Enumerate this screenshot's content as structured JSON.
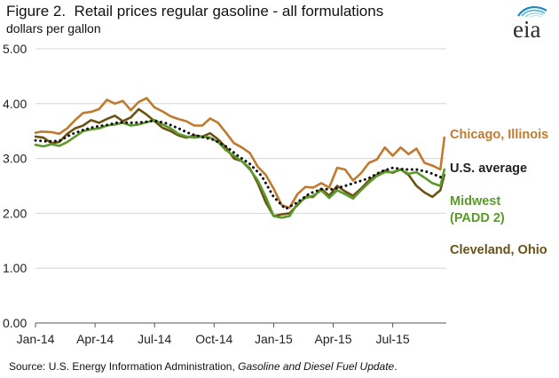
{
  "header": {
    "title_prefix": "Figure 2.",
    "title_text": "Retail prices regular gasoline - all formulations",
    "units": "dollars per gallon"
  },
  "logo": {
    "text": "eia",
    "icon": "eia-logo"
  },
  "source": {
    "prefix": "Source:  U.S. Energy Information Administration, ",
    "publication": "Gasoline and Diesel Fuel Update",
    "suffix": "."
  },
  "chart_data": {
    "type": "line",
    "ylim": [
      0,
      5
    ],
    "y_ticks": [
      0,
      1,
      2,
      3,
      4,
      5
    ],
    "y_tick_labels": [
      "0.00",
      "1.00",
      "2.00",
      "3.00",
      "4.00",
      "5.00"
    ],
    "x_ticks": [
      0,
      3,
      6,
      9,
      12,
      15,
      18
    ],
    "x_tick_labels": [
      "Jan-14",
      "Apr-14",
      "Jul-14",
      "Oct-14",
      "Jan-15",
      "Apr-15",
      "Jul-15"
    ],
    "x_unit": "months since Jan-14",
    "xlim": [
      0,
      20.7
    ],
    "grid": true,
    "series": [
      {
        "name": "Chicago, Illinois",
        "label_lines": [
          "Chicago, Illinois"
        ],
        "color": "#c07a2e",
        "dash": "solid",
        "x": [
          0.0,
          0.3,
          0.8,
          1.2,
          1.6,
          2.0,
          2.4,
          2.8,
          3.2,
          3.6,
          4.0,
          4.4,
          4.8,
          5.2,
          5.6,
          6.0,
          6.4,
          6.8,
          7.2,
          7.6,
          8.0,
          8.4,
          8.8,
          9.2,
          9.6,
          10.0,
          10.4,
          10.8,
          11.2,
          11.6,
          12.0,
          12.4,
          12.8,
          13.2,
          13.6,
          14.0,
          14.4,
          14.8,
          15.2,
          15.6,
          16.0,
          16.4,
          16.8,
          17.2,
          17.6,
          18.0,
          18.4,
          18.8,
          19.2,
          19.6,
          20.0,
          20.4,
          20.6
        ],
        "y": [
          3.47,
          3.49,
          3.48,
          3.45,
          3.55,
          3.7,
          3.83,
          3.85,
          3.9,
          4.07,
          4.0,
          4.05,
          3.88,
          4.03,
          4.1,
          3.93,
          3.86,
          3.77,
          3.72,
          3.68,
          3.6,
          3.6,
          3.73,
          3.65,
          3.47,
          3.28,
          3.2,
          3.1,
          2.85,
          2.7,
          2.45,
          2.15,
          2.1,
          2.35,
          2.48,
          2.47,
          2.55,
          2.47,
          2.83,
          2.8,
          2.6,
          2.73,
          2.92,
          2.98,
          3.2,
          3.05,
          3.2,
          3.08,
          3.18,
          2.92,
          2.87,
          2.8,
          3.38
        ]
      },
      {
        "name": "U.S. average",
        "label_lines": [
          "U.S. average"
        ],
        "color": "#111111",
        "dash": "dotted",
        "x": [
          0.0,
          0.6,
          1.2,
          1.8,
          2.4,
          3.0,
          3.6,
          4.2,
          4.8,
          5.4,
          6.0,
          6.6,
          7.2,
          7.8,
          8.4,
          9.0,
          9.6,
          10.2,
          10.8,
          11.4,
          12.0,
          12.6,
          13.2,
          13.8,
          14.4,
          15.0,
          15.6,
          16.2,
          16.8,
          17.4,
          18.0,
          18.6,
          19.2,
          19.8,
          20.4,
          20.6
        ],
        "y": [
          3.33,
          3.31,
          3.32,
          3.44,
          3.52,
          3.58,
          3.61,
          3.66,
          3.65,
          3.66,
          3.69,
          3.64,
          3.55,
          3.45,
          3.39,
          3.34,
          3.22,
          3.05,
          2.9,
          2.68,
          2.3,
          2.08,
          2.2,
          2.36,
          2.44,
          2.44,
          2.5,
          2.57,
          2.64,
          2.76,
          2.83,
          2.8,
          2.8,
          2.75,
          2.66,
          2.67
        ]
      },
      {
        "name": "Midwest (PADD 2)",
        "label_lines": [
          "Midwest",
          "(PADD 2)"
        ],
        "color": "#5a9a2a",
        "dash": "solid",
        "x": [
          0.0,
          0.4,
          0.8,
          1.2,
          1.6,
          2.0,
          2.4,
          2.8,
          3.2,
          3.6,
          4.0,
          4.4,
          4.8,
          5.2,
          5.6,
          6.0,
          6.4,
          6.8,
          7.2,
          7.6,
          8.0,
          8.4,
          8.8,
          9.2,
          9.6,
          10.0,
          10.4,
          10.8,
          11.2,
          11.6,
          12.0,
          12.4,
          12.8,
          13.2,
          13.6,
          14.0,
          14.4,
          14.8,
          15.2,
          15.6,
          16.0,
          16.4,
          16.8,
          17.2,
          17.6,
          18.0,
          18.4,
          18.8,
          19.2,
          19.6,
          20.0,
          20.4,
          20.6
        ],
        "y": [
          3.25,
          3.22,
          3.26,
          3.23,
          3.3,
          3.4,
          3.5,
          3.53,
          3.55,
          3.6,
          3.62,
          3.65,
          3.6,
          3.62,
          3.66,
          3.7,
          3.62,
          3.55,
          3.45,
          3.4,
          3.38,
          3.4,
          3.38,
          3.3,
          3.15,
          3.05,
          2.95,
          2.8,
          2.6,
          2.3,
          1.95,
          1.92,
          1.95,
          2.18,
          2.28,
          2.32,
          2.42,
          2.28,
          2.42,
          2.35,
          2.27,
          2.42,
          2.56,
          2.68,
          2.75,
          2.75,
          2.8,
          2.72,
          2.75,
          2.65,
          2.55,
          2.5,
          2.8
        ]
      },
      {
        "name": "Cleveland, Ohio",
        "label_lines": [
          "Cleveland, Ohio"
        ],
        "color": "#6b5214",
        "dash": "solid",
        "x": [
          0.0,
          0.4,
          0.8,
          1.2,
          1.6,
          2.0,
          2.4,
          2.8,
          3.2,
          3.6,
          4.0,
          4.4,
          4.8,
          5.2,
          5.6,
          6.0,
          6.4,
          6.8,
          7.2,
          7.6,
          8.0,
          8.4,
          8.8,
          9.2,
          9.6,
          10.0,
          10.4,
          10.8,
          11.2,
          11.6,
          12.0,
          12.4,
          12.8,
          13.2,
          13.6,
          14.0,
          14.4,
          14.8,
          15.2,
          15.6,
          16.0,
          16.4,
          16.8,
          17.2,
          17.6,
          18.0,
          18.4,
          18.8,
          19.2,
          19.6,
          20.0,
          20.4,
          20.6
        ],
        "y": [
          3.4,
          3.38,
          3.28,
          3.3,
          3.45,
          3.55,
          3.6,
          3.7,
          3.65,
          3.72,
          3.78,
          3.68,
          3.75,
          3.9,
          3.8,
          3.68,
          3.56,
          3.5,
          3.42,
          3.38,
          3.42,
          3.4,
          3.46,
          3.35,
          3.2,
          3.0,
          2.95,
          2.82,
          2.55,
          2.2,
          1.95,
          1.98,
          2.0,
          2.15,
          2.3,
          2.3,
          2.45,
          2.32,
          2.5,
          2.4,
          2.32,
          2.45,
          2.6,
          2.7,
          2.78,
          2.74,
          2.8,
          2.7,
          2.5,
          2.38,
          2.3,
          2.42,
          2.7
        ]
      }
    ]
  }
}
